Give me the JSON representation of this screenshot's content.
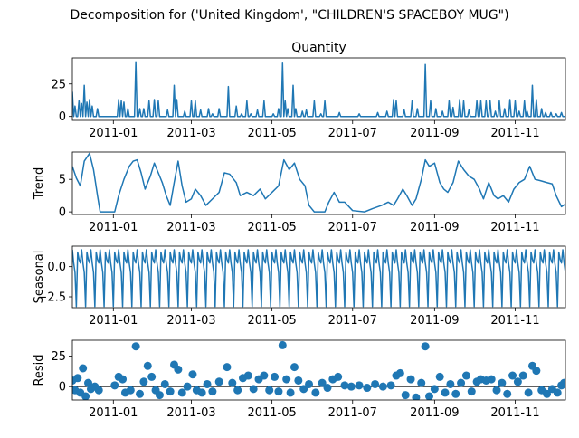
{
  "figure": {
    "suptitle": "Decomposition for ('United Kingdom', \"CHILDREN'S SPACEBOY MUG\")",
    "line_color": "#1f77b4"
  },
  "chart_data": [
    {
      "id": "observed",
      "type": "line",
      "title": "Quantity",
      "ylabel": "",
      "xlim": [
        "2010-12-01",
        "2011-12-09"
      ],
      "ylim": [
        -3,
        45
      ],
      "yticks": [
        0,
        25
      ],
      "xticks": [
        "2011-01",
        "2011-03",
        "2011-05",
        "2011-07",
        "2011-09",
        "2011-11"
      ],
      "spikes": [
        [
          "2010-12-01",
          19
        ],
        [
          "2010-12-03",
          8
        ],
        [
          "2010-12-06",
          12
        ],
        [
          "2010-12-08",
          10
        ],
        [
          "2010-12-10",
          24
        ],
        [
          "2010-12-12",
          11
        ],
        [
          "2010-12-14",
          13
        ],
        [
          "2010-12-16",
          8
        ],
        [
          "2010-12-20",
          6
        ],
        [
          "2011-01-05",
          13
        ],
        [
          "2011-01-07",
          12
        ],
        [
          "2011-01-09",
          11
        ],
        [
          "2011-01-12",
          6
        ],
        [
          "2011-01-18",
          42
        ],
        [
          "2011-01-21",
          6
        ],
        [
          "2011-01-24",
          6
        ],
        [
          "2011-01-28",
          12
        ],
        [
          "2011-02-01",
          13
        ],
        [
          "2011-02-04",
          12
        ],
        [
          "2011-02-11",
          5
        ],
        [
          "2011-02-16",
          24
        ],
        [
          "2011-02-18",
          13
        ],
        [
          "2011-02-24",
          4
        ],
        [
          "2011-03-01",
          12
        ],
        [
          "2011-03-04",
          12
        ],
        [
          "2011-03-08",
          5
        ],
        [
          "2011-03-14",
          6
        ],
        [
          "2011-03-17",
          2
        ],
        [
          "2011-03-22",
          6
        ],
        [
          "2011-03-29",
          23
        ],
        [
          "2011-04-04",
          8
        ],
        [
          "2011-04-08",
          2
        ],
        [
          "2011-04-12",
          12
        ],
        [
          "2011-04-15",
          2
        ],
        [
          "2011-04-20",
          5
        ],
        [
          "2011-04-25",
          12
        ],
        [
          "2011-05-02",
          2
        ],
        [
          "2011-05-06",
          6
        ],
        [
          "2011-05-09",
          41
        ],
        [
          "2011-05-11",
          12
        ],
        [
          "2011-05-13",
          6
        ],
        [
          "2011-05-17",
          24
        ],
        [
          "2011-05-19",
          6
        ],
        [
          "2011-05-24",
          4
        ],
        [
          "2011-05-27",
          5
        ],
        [
          "2011-06-02",
          12
        ],
        [
          "2011-06-07",
          2
        ],
        [
          "2011-06-10",
          12
        ],
        [
          "2011-06-21",
          3
        ],
        [
          "2011-07-06",
          2
        ],
        [
          "2011-07-20",
          3
        ],
        [
          "2011-07-27",
          4
        ],
        [
          "2011-08-01",
          13
        ],
        [
          "2011-08-03",
          12
        ],
        [
          "2011-08-09",
          5
        ],
        [
          "2011-08-15",
          12
        ],
        [
          "2011-08-19",
          6
        ],
        [
          "2011-08-25",
          40
        ],
        [
          "2011-08-29",
          12
        ],
        [
          "2011-09-02",
          6
        ],
        [
          "2011-09-07",
          4
        ],
        [
          "2011-09-12",
          12
        ],
        [
          "2011-09-15",
          7
        ],
        [
          "2011-09-20",
          13
        ],
        [
          "2011-09-23",
          12
        ],
        [
          "2011-09-27",
          5
        ],
        [
          "2011-10-03",
          12
        ],
        [
          "2011-10-06",
          12
        ],
        [
          "2011-10-10",
          12
        ],
        [
          "2011-10-13",
          12
        ],
        [
          "2011-10-17",
          4
        ],
        [
          "2011-10-20",
          12
        ],
        [
          "2011-10-24",
          6
        ],
        [
          "2011-10-28",
          13
        ],
        [
          "2011-11-01",
          12
        ],
        [
          "2011-11-04",
          4
        ],
        [
          "2011-11-08",
          12
        ],
        [
          "2011-11-10",
          4
        ],
        [
          "2011-11-14",
          24
        ],
        [
          "2011-11-17",
          13
        ],
        [
          "2011-11-21",
          6
        ],
        [
          "2011-11-24",
          3
        ],
        [
          "2011-11-28",
          3
        ],
        [
          "2011-12-02",
          2
        ],
        [
          "2011-12-06",
          3
        ]
      ]
    },
    {
      "id": "trend",
      "type": "line",
      "title": "",
      "ylabel": "Trend",
      "xlim": [
        "2010-12-01",
        "2011-12-09"
      ],
      "ylim": [
        -0.4,
        9.2
      ],
      "yticks": [
        0,
        5
      ],
      "xticks": [
        "2011-01",
        "2011-03",
        "2011-05",
        "2011-07",
        "2011-09",
        "2011-11"
      ],
      "points": [
        [
          "2010-12-01",
          7.0
        ],
        [
          "2010-12-04",
          5.2
        ],
        [
          "2010-12-07",
          4.0
        ],
        [
          "2010-12-10",
          7.8
        ],
        [
          "2010-12-14",
          9.0
        ],
        [
          "2010-12-17",
          6.5
        ],
        [
          "2010-12-20",
          2.5
        ],
        [
          "2010-12-22",
          0.0
        ],
        [
          "2011-01-02",
          0.0
        ],
        [
          "2011-01-05",
          2.5
        ],
        [
          "2011-01-09",
          5.0
        ],
        [
          "2011-01-13",
          7.0
        ],
        [
          "2011-01-16",
          7.8
        ],
        [
          "2011-01-19",
          8.0
        ],
        [
          "2011-01-22",
          6.0
        ],
        [
          "2011-01-25",
          3.5
        ],
        [
          "2011-01-29",
          5.5
        ],
        [
          "2011-02-01",
          7.5
        ],
        [
          "2011-02-04",
          6.0
        ],
        [
          "2011-02-07",
          4.5
        ],
        [
          "2011-02-10",
          2.5
        ],
        [
          "2011-02-13",
          1.0
        ],
        [
          "2011-02-16",
          4.5
        ],
        [
          "2011-02-19",
          7.8
        ],
        [
          "2011-02-22",
          4.0
        ],
        [
          "2011-02-25",
          1.5
        ],
        [
          "2011-03-01",
          2.0
        ],
        [
          "2011-03-04",
          3.5
        ],
        [
          "2011-03-08",
          2.5
        ],
        [
          "2011-03-12",
          1.0
        ],
        [
          "2011-03-17",
          2.0
        ],
        [
          "2011-03-22",
          3.0
        ],
        [
          "2011-03-26",
          6.0
        ],
        [
          "2011-03-30",
          5.8
        ],
        [
          "2011-04-04",
          4.5
        ],
        [
          "2011-04-07",
          2.5
        ],
        [
          "2011-04-12",
          3.0
        ],
        [
          "2011-04-17",
          2.5
        ],
        [
          "2011-04-22",
          3.5
        ],
        [
          "2011-04-26",
          2.0
        ],
        [
          "2011-05-01",
          3.0
        ],
        [
          "2011-05-06",
          4.0
        ],
        [
          "2011-05-10",
          8.0
        ],
        [
          "2011-05-14",
          6.5
        ],
        [
          "2011-05-18",
          7.5
        ],
        [
          "2011-05-22",
          5.0
        ],
        [
          "2011-05-26",
          4.0
        ],
        [
          "2011-05-29",
          1.0
        ],
        [
          "2011-06-02",
          0.0
        ],
        [
          "2011-06-10",
          0.0
        ],
        [
          "2011-06-13",
          1.5
        ],
        [
          "2011-06-17",
          3.0
        ],
        [
          "2011-06-21",
          1.5
        ],
        [
          "2011-06-25",
          1.5
        ],
        [
          "2011-07-01",
          0.2
        ],
        [
          "2011-07-10",
          0.0
        ],
        [
          "2011-07-16",
          0.5
        ],
        [
          "2011-07-23",
          1.0
        ],
        [
          "2011-07-28",
          1.5
        ],
        [
          "2011-08-01",
          1.0
        ],
        [
          "2011-08-04",
          2.0
        ],
        [
          "2011-08-08",
          3.5
        ],
        [
          "2011-08-11",
          2.5
        ],
        [
          "2011-08-15",
          1.0
        ],
        [
          "2011-08-18",
          2.0
        ],
        [
          "2011-08-22",
          5.0
        ],
        [
          "2011-08-25",
          8.0
        ],
        [
          "2011-08-28",
          7.0
        ],
        [
          "2011-09-01",
          7.5
        ],
        [
          "2011-09-05",
          4.5
        ],
        [
          "2011-09-08",
          3.5
        ],
        [
          "2011-09-11",
          3.0
        ],
        [
          "2011-09-15",
          4.5
        ],
        [
          "2011-09-19",
          7.8
        ],
        [
          "2011-09-23",
          6.5
        ],
        [
          "2011-09-27",
          5.5
        ],
        [
          "2011-10-01",
          5.0
        ],
        [
          "2011-10-05",
          3.5
        ],
        [
          "2011-10-08",
          2.0
        ],
        [
          "2011-10-12",
          4.5
        ],
        [
          "2011-10-16",
          2.5
        ],
        [
          "2011-10-19",
          2.0
        ],
        [
          "2011-10-23",
          2.5
        ],
        [
          "2011-10-27",
          1.5
        ],
        [
          "2011-10-31",
          3.5
        ],
        [
          "2011-11-04",
          4.5
        ],
        [
          "2011-11-08",
          5.0
        ],
        [
          "2011-11-12",
          7.0
        ],
        [
          "2011-11-16",
          5.0
        ],
        [
          "2011-11-20",
          4.8
        ],
        [
          "2011-11-25",
          4.5
        ],
        [
          "2011-11-29",
          4.3
        ],
        [
          "2011-12-02",
          2.5
        ],
        [
          "2011-12-06",
          0.8
        ],
        [
          "2011-12-09",
          1.2
        ]
      ]
    },
    {
      "id": "seasonal",
      "type": "line",
      "title": "",
      "ylabel": "Seasonal",
      "xlim": [
        "2010-12-01",
        "2011-12-09"
      ],
      "ylim": [
        -3.4,
        1.7
      ],
      "yticks": [
        0.0,
        -2.5
      ],
      "ytick_labels": [
        "0.0",
        "−2.5"
      ],
      "xticks": [
        "2011-01",
        "2011-03",
        "2011-05",
        "2011-07",
        "2011-09",
        "2011-11"
      ],
      "period_days": 7,
      "pattern": [
        1.4,
        0.3,
        -0.5,
        -3.3,
        1.2,
        0.6,
        0.3
      ]
    },
    {
      "id": "resid",
      "type": "scatter",
      "title": "",
      "ylabel": "Resid",
      "xlim": [
        "2010-12-01",
        "2011-12-09"
      ],
      "ylim": [
        -11,
        38
      ],
      "yticks": [
        0,
        25
      ],
      "xticks": [
        "2011-01",
        "2011-03",
        "2011-05",
        "2011-07",
        "2011-09",
        "2011-11"
      ],
      "points": [
        [
          "2010-12-01",
          5
        ],
        [
          "2010-12-03",
          -3
        ],
        [
          "2010-12-05",
          7
        ],
        [
          "2010-12-07",
          -5
        ],
        [
          "2010-12-09",
          15
        ],
        [
          "2010-12-11",
          -8
        ],
        [
          "2010-12-13",
          3
        ],
        [
          "2010-12-15",
          -2
        ],
        [
          "2010-12-18",
          0
        ],
        [
          "2010-12-21",
          -3
        ],
        [
          "2011-01-02",
          1
        ],
        [
          "2011-01-05",
          8
        ],
        [
          "2011-01-08",
          6
        ],
        [
          "2011-01-10",
          -5
        ],
        [
          "2011-01-14",
          -3
        ],
        [
          "2011-01-18",
          33
        ],
        [
          "2011-01-21",
          -6
        ],
        [
          "2011-01-24",
          4
        ],
        [
          "2011-01-27",
          17
        ],
        [
          "2011-01-30",
          8
        ],
        [
          "2011-02-02",
          -3
        ],
        [
          "2011-02-05",
          -7
        ],
        [
          "2011-02-09",
          2
        ],
        [
          "2011-02-13",
          -4
        ],
        [
          "2011-02-16",
          18
        ],
        [
          "2011-02-19",
          14
        ],
        [
          "2011-02-22",
          -5
        ],
        [
          "2011-02-26",
          0
        ],
        [
          "2011-03-02",
          10
        ],
        [
          "2011-03-05",
          -3
        ],
        [
          "2011-03-09",
          -5
        ],
        [
          "2011-03-13",
          2
        ],
        [
          "2011-03-17",
          -4
        ],
        [
          "2011-03-22",
          4
        ],
        [
          "2011-03-28",
          16
        ],
        [
          "2011-04-01",
          3
        ],
        [
          "2011-04-05",
          -3
        ],
        [
          "2011-04-09",
          7
        ],
        [
          "2011-04-13",
          9
        ],
        [
          "2011-04-17",
          -2
        ],
        [
          "2011-04-21",
          6
        ],
        [
          "2011-04-25",
          9
        ],
        [
          "2011-04-29",
          -3
        ],
        [
          "2011-05-03",
          8
        ],
        [
          "2011-05-06",
          -4
        ],
        [
          "2011-05-09",
          34
        ],
        [
          "2011-05-12",
          6
        ],
        [
          "2011-05-15",
          -5
        ],
        [
          "2011-05-18",
          16
        ],
        [
          "2011-05-21",
          5
        ],
        [
          "2011-05-25",
          -2
        ],
        [
          "2011-05-29",
          2
        ],
        [
          "2011-06-03",
          -5
        ],
        [
          "2011-06-08",
          3
        ],
        [
          "2011-06-12",
          -1
        ],
        [
          "2011-06-16",
          6
        ],
        [
          "2011-06-20",
          8
        ],
        [
          "2011-06-25",
          1
        ],
        [
          "2011-06-30",
          0
        ],
        [
          "2011-07-06",
          1
        ],
        [
          "2011-07-12",
          -1
        ],
        [
          "2011-07-18",
          2
        ],
        [
          "2011-07-24",
          0
        ],
        [
          "2011-07-30",
          1
        ],
        [
          "2011-08-03",
          9
        ],
        [
          "2011-08-06",
          11
        ],
        [
          "2011-08-10",
          -7
        ],
        [
          "2011-08-14",
          6
        ],
        [
          "2011-08-18",
          -9
        ],
        [
          "2011-08-22",
          3
        ],
        [
          "2011-08-25",
          33
        ],
        [
          "2011-08-28",
          -8
        ],
        [
          "2011-09-01",
          -2
        ],
        [
          "2011-09-05",
          8
        ],
        [
          "2011-09-09",
          -5
        ],
        [
          "2011-09-13",
          2
        ],
        [
          "2011-09-17",
          -6
        ],
        [
          "2011-09-21",
          3
        ],
        [
          "2011-09-25",
          9
        ],
        [
          "2011-09-29",
          -4
        ],
        [
          "2011-10-03",
          4
        ],
        [
          "2011-10-06",
          6
        ],
        [
          "2011-10-10",
          5
        ],
        [
          "2011-10-14",
          6
        ],
        [
          "2011-10-18",
          -3
        ],
        [
          "2011-10-22",
          3
        ],
        [
          "2011-10-26",
          -6
        ],
        [
          "2011-10-30",
          9
        ],
        [
          "2011-11-03",
          4
        ],
        [
          "2011-11-07",
          9
        ],
        [
          "2011-11-11",
          -5
        ],
        [
          "2011-11-14",
          17
        ],
        [
          "2011-11-17",
          13
        ],
        [
          "2011-11-21",
          -3
        ],
        [
          "2011-11-25",
          -6
        ],
        [
          "2011-11-29",
          -2
        ],
        [
          "2011-12-03",
          -5
        ],
        [
          "2011-12-06",
          1
        ],
        [
          "2011-12-08",
          3
        ]
      ]
    }
  ]
}
